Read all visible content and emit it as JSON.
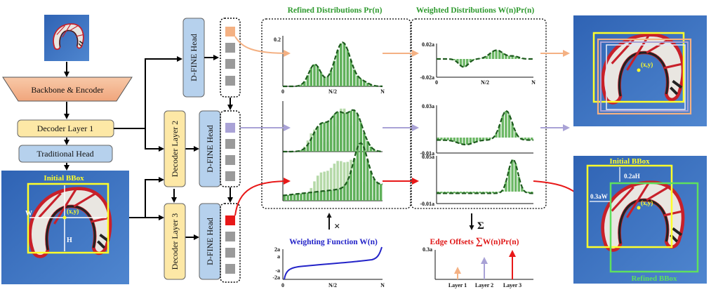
{
  "pipeline": {
    "backbone": "Backbone & Encoder",
    "decoder1": "Decoder Layer 1",
    "decoder2": "Decoder Layer 2",
    "decoder3": "Decoder Layer 3",
    "traditional_head": "Traditional Head",
    "dfine_head": "D-FINE Head"
  },
  "initial_photo": {
    "label": "Initial BBox",
    "w_label": "W",
    "h_label": "H",
    "center_label": "(x,y)"
  },
  "panels": {
    "refined_title": "Refined Distributions Pr(n)",
    "weighted_title": "Weighted Distributions W(n)Pr(n)",
    "x_ticks": [
      "0",
      "N/2",
      "N"
    ],
    "refined_y": [
      "0.2"
    ],
    "weighted_y": [
      [
        "0.02a",
        "-0.02a"
      ],
      [
        "0.03a",
        "-0.01a"
      ],
      [
        "0.05a",
        "-0.01a"
      ]
    ],
    "times_symbol": "×",
    "sum_symbol": "Σ"
  },
  "weighting": {
    "title": "Weighting Function W(n)",
    "y_ticks": [
      "2a",
      "a",
      "-a",
      "-2a"
    ],
    "x_ticks": [
      "0",
      "N/2",
      "N"
    ]
  },
  "offsets": {
    "title_prefix": "Edge Offsets ",
    "title_sum": "∑",
    "title_suffix": "W(n)Pr(n)",
    "y_tick": "0.3a",
    "layers": [
      "Layer 1",
      "Layer 2",
      "Layer 3"
    ]
  },
  "result_photo": {
    "initial_label": "Initial BBox",
    "refined_label": "Refined BBox",
    "h_offset": "0.2aH",
    "w_offset": "0.3aW",
    "center_label": "(x,y)"
  },
  "colors": {
    "layer1": "#f4b183",
    "layer2": "#a9a2d6",
    "layer3": "#e81818",
    "green": "#2e9a2e",
    "blue": "#2323c8"
  }
}
